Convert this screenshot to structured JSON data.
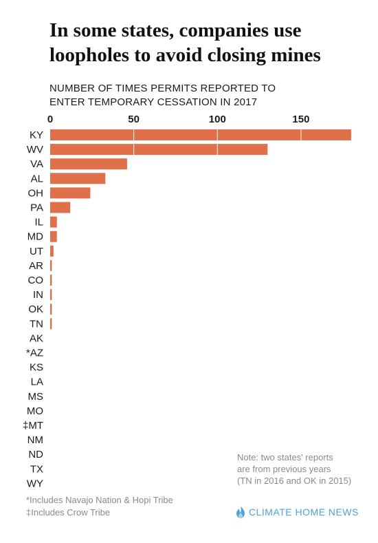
{
  "title": "In some states, companies use loopholes to avoid closing mines",
  "subtitle_lines": [
    "NUMBER OF TIMES PERMITS REPORTED TO",
    "ENTER TEMPORARY CESSATION IN 2017"
  ],
  "note_lines": [
    "Note: two states' reports",
    "are from previous years",
    "(TN in 2016 and OK in 2015)"
  ],
  "footnotes": [
    "*Includes Navajo Nation & Hopi Tribe",
    "‡Includes Crow Tribe"
  ],
  "brand": {
    "name": "CLIMATE HOME NEWS",
    "color": "#4aa3d9",
    "icon": "flame-logo-icon"
  },
  "colors": {
    "bar": "#e07049",
    "bar_divider": "#ffffff"
  },
  "chart_data": {
    "type": "bar",
    "orientation": "horizontal",
    "title": "In some states, companies use loopholes to avoid closing mines",
    "xlim": [
      0,
      180
    ],
    "ticks": [
      0,
      50,
      100,
      150
    ],
    "tick_position": "top",
    "grid": "white dividers within bars at tick values",
    "categories": [
      "KY",
      "WV",
      "VA",
      "AL",
      "OH",
      "PA",
      "IL",
      "MD",
      "UT",
      "AR",
      "CO",
      "IN",
      "OK",
      "TN",
      "AK",
      "*AZ",
      "KS",
      "LA",
      "MS",
      "MO",
      "‡MT",
      "NM",
      "ND",
      "TX",
      "WY"
    ],
    "values": [
      180,
      130,
      46,
      33,
      24,
      12,
      4,
      4,
      2,
      1,
      1,
      1,
      1,
      1,
      0,
      0,
      0,
      0,
      0,
      0,
      0,
      0,
      0,
      0,
      0
    ]
  }
}
